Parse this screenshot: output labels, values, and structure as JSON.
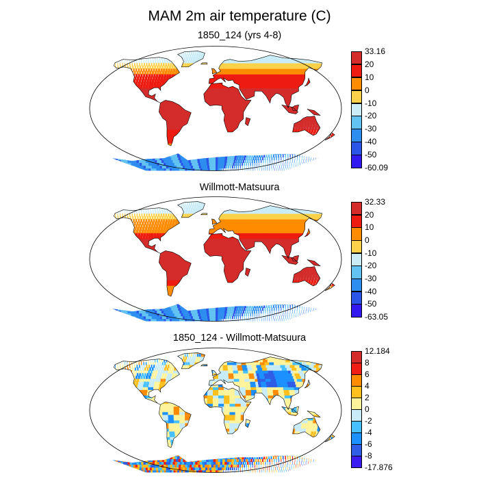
{
  "figure": {
    "title": "MAM 2m air temperature (C)"
  },
  "panels": [
    {
      "title": "1850_124 (yrs 4-8)",
      "colorbar": {
        "labels": [
          "33.16",
          "20",
          "10",
          "0",
          "-10",
          "-20",
          "-30",
          "-40",
          "-50",
          "-60.09"
        ],
        "colors": [
          "#d42b2b",
          "#ee1c10",
          "#ff8c00",
          "#fdd24a",
          "#c9ecf7",
          "#62c2f2",
          "#2d8ef0",
          "#2a55e8",
          "#3219f0"
        ]
      }
    },
    {
      "title": "Willmott-Matsuura",
      "colorbar": {
        "labels": [
          "32.33",
          "20",
          "10",
          "0",
          "-10",
          "-20",
          "-30",
          "-40",
          "-50",
          "-63.05"
        ],
        "colors": [
          "#d42b2b",
          "#ee1c10",
          "#ff8c00",
          "#fdd24a",
          "#c9ecf7",
          "#62c2f2",
          "#2d8ef0",
          "#2a55e8",
          "#3219f0"
        ]
      }
    },
    {
      "title": "1850_124 - Willmott-Matsuura",
      "colorbar": {
        "labels": [
          "12.184",
          "8",
          "6",
          "4",
          "2",
          "0",
          "-2",
          "-4",
          "-6",
          "-8",
          "-17.876"
        ],
        "colors": [
          "#d42b2b",
          "#f01e14",
          "#ff8c00",
          "#ffc01e",
          "#fff39c",
          "#c7ecf8",
          "#46c0ff",
          "#1d90ff",
          "#2f5de6",
          "#3a1cf0"
        ]
      }
    }
  ]
}
